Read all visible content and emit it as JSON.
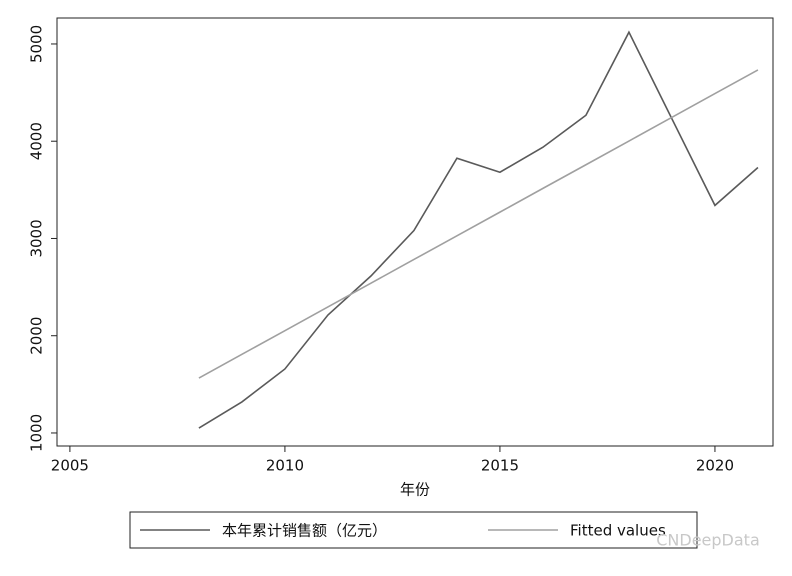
{
  "chart_data": {
    "type": "line",
    "x_label": "年份",
    "x": [
      2008,
      2009,
      2010,
      2011,
      2012,
      2013,
      2014,
      2015,
      2016,
      2017,
      2018,
      2019,
      2020,
      2021
    ],
    "series": [
      {
        "name": "本年累计销售额（亿元）",
        "color": "#5a5a5a",
        "values": [
          1051,
          1319,
          1658,
          2213,
          2614,
          3082,
          3825,
          3681,
          3938,
          4267,
          5121,
          4230,
          3340,
          3730
        ]
      },
      {
        "name": "Fitted values",
        "color": "#a0a0a0",
        "values": [
          1565,
          1809,
          2052,
          2296,
          2540,
          2784,
          3027,
          3271,
          3515,
          3758,
          4002,
          4246,
          4490,
          4733
        ]
      }
    ],
    "xlim": [
      2004.7,
      2021.35
    ],
    "xticks": [
      2005,
      2010,
      2015,
      2020
    ],
    "ylim": [
      866,
      5267
    ],
    "yticks": [
      1000,
      2000,
      3000,
      4000,
      5000
    ],
    "grid": false,
    "legend": "bottom",
    "watermark": "CNDeepData"
  }
}
